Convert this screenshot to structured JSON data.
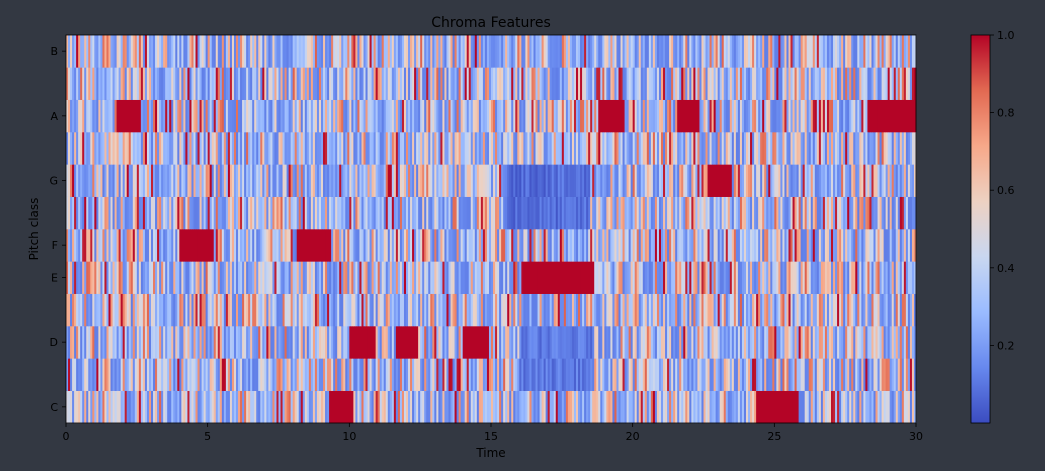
{
  "chart_data": {
    "type": "heatmap",
    "title": "Chroma Features",
    "xlabel": "Time",
    "ylabel": "Pitch class",
    "xlim": [
      0,
      30
    ],
    "x_ticks": [
      0,
      5,
      10,
      15,
      20,
      25,
      30
    ],
    "y_rows": [
      "C",
      "C#",
      "D",
      "D#",
      "E",
      "F",
      "F#",
      "G",
      "G#",
      "A",
      "A#",
      "B"
    ],
    "y_tick_labels": [
      "C",
      "D",
      "E",
      "F",
      "G",
      "A",
      "B"
    ],
    "colormap": "coolwarm",
    "colorbar": {
      "range": [
        0.0,
        1.0
      ],
      "ticks": [
        "0.2",
        "0.4",
        "0.6",
        "0.8",
        "1.0"
      ],
      "colors": [
        "#3b4cc0",
        "#6788ee",
        "#9abbff",
        "#c9d7f0",
        "#edd1c2",
        "#f7a889",
        "#e26952",
        "#b40426"
      ]
    },
    "grid": false,
    "notable_regions": [
      {
        "pitch": "E",
        "x": [
          16.2,
          18.6
        ],
        "value": 1.0
      },
      {
        "pitch": "A",
        "x": [
          28.3,
          30.0
        ],
        "value": 1.0
      },
      {
        "pitch": "A",
        "x": [
          1.8,
          2.6
        ],
        "value": 1.0
      },
      {
        "pitch": "A",
        "x": [
          18.8,
          19.6
        ],
        "value": 1.0
      },
      {
        "pitch": "A",
        "x": [
          21.6,
          22.3
        ],
        "value": 1.0
      },
      {
        "pitch": "G",
        "x": [
          22.7,
          23.5
        ],
        "value": 1.0
      },
      {
        "pitch": "F",
        "x": [
          4.0,
          5.2
        ],
        "value": 1.0
      },
      {
        "pitch": "F",
        "x": [
          8.2,
          9.3
        ],
        "value": 1.0
      },
      {
        "pitch": "D",
        "x": [
          10.0,
          10.9
        ],
        "value": 1.0
      },
      {
        "pitch": "D",
        "x": [
          11.7,
          12.4
        ],
        "value": 1.0
      },
      {
        "pitch": "D",
        "x": [
          14.0,
          14.9
        ],
        "value": 1.0
      },
      {
        "pitch": "C",
        "x": [
          24.4,
          25.8
        ],
        "value": 1.0
      },
      {
        "pitch": "C",
        "x": [
          9.3,
          10.1
        ],
        "value": 1.0
      },
      {
        "pitch": "C#",
        "x": [
          16.0,
          18.6
        ],
        "value": 0.05
      },
      {
        "pitch": "D",
        "x": [
          16.0,
          18.6
        ],
        "value": 0.05
      },
      {
        "pitch": "G",
        "x": [
          15.5,
          18.5
        ],
        "value": 0.02
      },
      {
        "pitch": "F#",
        "x": [
          15.5,
          18.5
        ],
        "value": 0.02
      }
    ]
  }
}
